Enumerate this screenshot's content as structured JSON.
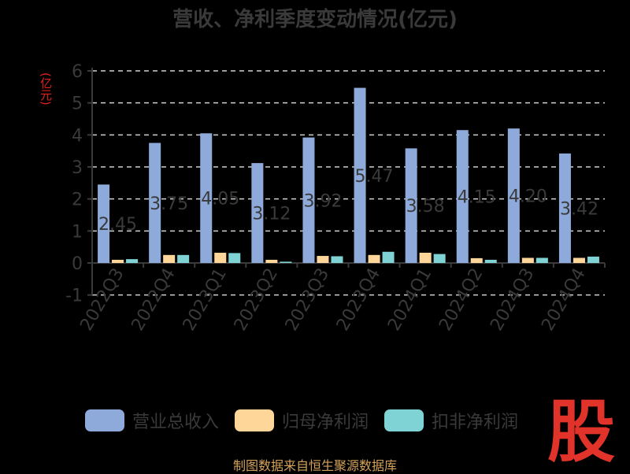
{
  "title": "营收、净利季度变动情况(亿元)",
  "unit_label": "(亿元)",
  "source": "制图数据来自恒生聚源数据库",
  "logo_text": "股",
  "colors": {
    "revenue": "#8eaadb",
    "net_profit": "#ffd699",
    "deducted_profit": "#7fd3d4",
    "axis": "#3a3a3a",
    "logo": "#e2332a"
  },
  "chart_data": {
    "type": "bar",
    "title": "营收、净利季度变动情况(亿元)",
    "ylabel": "(亿元)",
    "ylim": [
      -1,
      6
    ],
    "yticks": [
      -1,
      0,
      1,
      2,
      3,
      4,
      5,
      6
    ],
    "grid": true,
    "legend_position": "bottom",
    "categories": [
      "2022Q3",
      "2022Q4",
      "2023Q1",
      "2023Q2",
      "2023Q3",
      "2023Q4",
      "2024Q1",
      "2024Q2",
      "2024Q3",
      "2024Q4"
    ],
    "series": [
      {
        "name": "营业总收入",
        "color": "#8eaadb",
        "values": [
          2.45,
          3.75,
          4.05,
          3.12,
          3.92,
          5.47,
          3.58,
          4.15,
          4.2,
          3.42
        ],
        "labels": [
          "2.45",
          "3.75",
          "4.05",
          "3.12",
          "3.92",
          "5.47",
          "3.58",
          "4.15",
          "4.20",
          "3.42"
        ]
      },
      {
        "name": "归母净利润",
        "color": "#ffd699",
        "values": [
          0.1,
          0.25,
          0.32,
          0.1,
          0.22,
          0.25,
          0.32,
          0.15,
          0.16,
          0.16
        ]
      },
      {
        "name": "扣非净利润",
        "color": "#7fd3d4",
        "values": [
          0.12,
          0.25,
          0.31,
          0.04,
          0.21,
          0.35,
          0.28,
          0.1,
          0.16,
          0.2
        ]
      }
    ]
  }
}
